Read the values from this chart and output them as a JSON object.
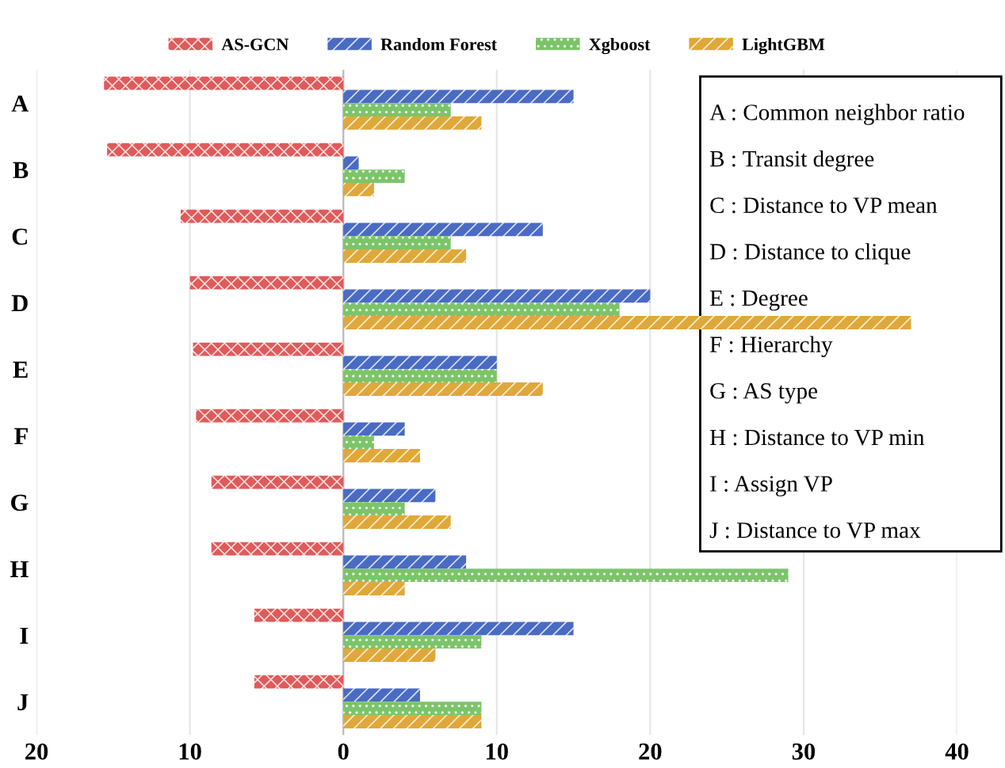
{
  "chart_data": {
    "type": "bar",
    "orientation": "horizontal",
    "categories": [
      "A",
      "B",
      "C",
      "D",
      "E",
      "F",
      "G",
      "H",
      "I",
      "J"
    ],
    "series": [
      {
        "name": "AS-GCN",
        "color": "#e05a5a",
        "values": [
          -15.6,
          -15.4,
          -10.6,
          -10,
          -9.8,
          -9.6,
          -8.6,
          -8.6,
          -5.8,
          -5.8
        ]
      },
      {
        "name": "Random Forest",
        "color": "#4a6bc4",
        "values": [
          15,
          1,
          13,
          20,
          10,
          4,
          6,
          8,
          15,
          5
        ]
      },
      {
        "name": "Xgboost",
        "color": "#7cc46a",
        "values": [
          7,
          4,
          7,
          18,
          10,
          2,
          4,
          29,
          9,
          9
        ]
      },
      {
        "name": "LightGBM",
        "color": "#e0a83a",
        "values": [
          9,
          2,
          8,
          37,
          13,
          5,
          7,
          4,
          6,
          9
        ]
      }
    ],
    "xlim": [
      -20,
      40
    ],
    "xticks": [
      {
        "value": -20,
        "label": "20"
      },
      {
        "value": -10,
        "label": "10"
      },
      0,
      10,
      20,
      30,
      40
    ],
    "grid": "x",
    "legend": "top",
    "annotations": [
      "A : Common neighbor ratio",
      "B : Transit degree",
      "C : Distance to VP mean",
      "D : Distance to clique",
      "E : Degree",
      "F : Hierarchy",
      "G : AS type",
      "H : Distance to VP min",
      "I : Assign VP",
      "J : Distance to VP max"
    ]
  }
}
